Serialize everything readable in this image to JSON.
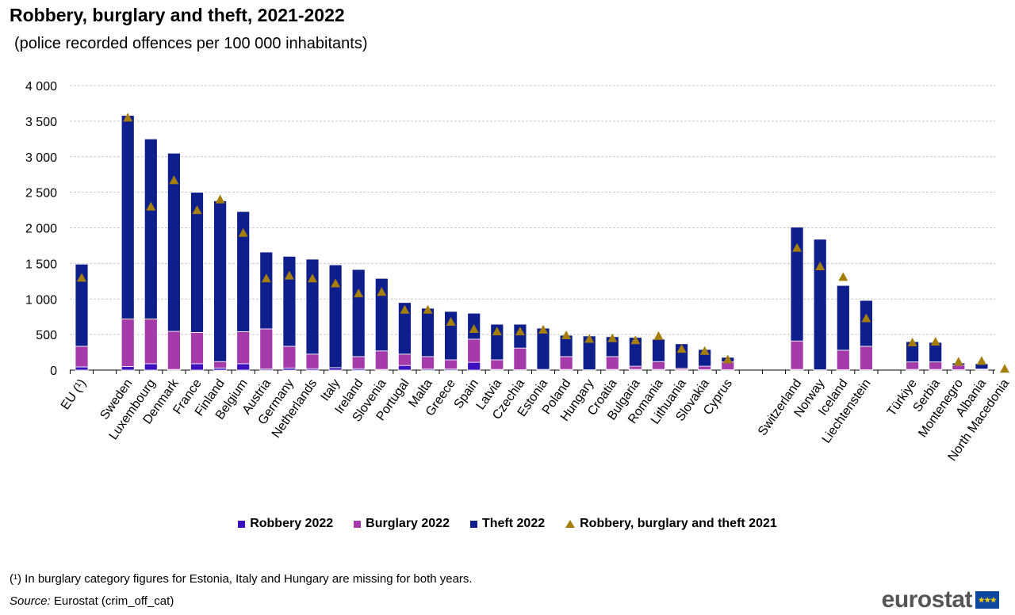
{
  "chart_data": {
    "type": "bar",
    "stacked": true,
    "title": "Robbery, burglary and theft, 2021-2022",
    "subtitle": "(police recorded offences per 100 000 inhabitants)",
    "xlabel": "",
    "ylabel": "",
    "ylim": [
      0,
      4000
    ],
    "yticks": [
      0,
      500,
      1000,
      1500,
      2000,
      2500,
      3000,
      3500,
      4000
    ],
    "ytick_labels": [
      "0",
      "500",
      "1 000",
      "1 500",
      "2 000",
      "2 500",
      "3 000",
      "3 500",
      "4 000"
    ],
    "grid": true,
    "legend_position": "bottom",
    "categories": [
      "EU (¹)",
      "Sweden",
      "Luxembourg",
      "Denmark",
      "France",
      "Finland",
      "Belgium",
      "Austria",
      "Germany",
      "Netherlands",
      "Italy",
      "Ireland",
      "Slovenia",
      "Portugal",
      "Malta",
      "Greece",
      "Spain",
      "Latvia",
      "Czechia",
      "Estonia",
      "Poland",
      "Hungary",
      "Croatia",
      "Bulgaria",
      "Romania",
      "Lithuania",
      "Slovakia",
      "Cyprus",
      "Switzerland",
      "Norway",
      "Iceland",
      "Liechtenstein",
      "Türkiye",
      "Serbia",
      "Montenegro",
      "Albania",
      "North Macedonia"
    ],
    "series": [
      {
        "name": "Robbery 2022",
        "type": "bar",
        "color": "#3c0fc0",
        "values": [
          45,
          50,
          90,
          10,
          90,
          30,
          90,
          15,
          30,
          20,
          35,
          20,
          10,
          65,
          15,
          15,
          110,
          10,
          5,
          10,
          10,
          5,
          10,
          10,
          10,
          5,
          5,
          5,
          10,
          5,
          5,
          5,
          10,
          10,
          5,
          5,
          null
        ]
      },
      {
        "name": "Burglary 2022",
        "type": "bar",
        "color": "#a53aab",
        "values": [
          290,
          670,
          630,
          535,
          440,
          90,
          450,
          565,
          305,
          205,
          0,
          170,
          260,
          160,
          175,
          130,
          325,
          135,
          305,
          0,
          180,
          0,
          180,
          45,
          110,
          20,
          50,
          110,
          400,
          0,
          275,
          330,
          105,
          105,
          65,
          10,
          null
        ]
      },
      {
        "name": "Theft 2022",
        "type": "bar",
        "color": "#0e1e8c",
        "values": [
          1155,
          2860,
          2530,
          2505,
          1970,
          2260,
          1690,
          1080,
          1265,
          1335,
          1445,
          1225,
          1020,
          725,
          680,
          680,
          365,
          500,
          335,
          580,
          300,
          475,
          280,
          405,
          315,
          345,
          235,
          65,
          1600,
          1835,
          910,
          645,
          285,
          275,
          30,
          75,
          null
        ]
      },
      {
        "name": "Robbery, burglary and theft 2021",
        "type": "marker",
        "color": "#a57e0a",
        "values": [
          1300,
          3550,
          2300,
          2670,
          2250,
          2400,
          1930,
          1290,
          1330,
          1290,
          1220,
          1080,
          1100,
          850,
          850,
          680,
          580,
          545,
          545,
          570,
          490,
          440,
          450,
          420,
          480,
          300,
          270,
          150,
          1720,
          1460,
          1310,
          730,
          390,
          400,
          120,
          130,
          20
        ]
      }
    ],
    "groups": [
      [
        0,
        0
      ],
      [
        1,
        27
      ],
      [
        28,
        31
      ],
      [
        32,
        36
      ]
    ]
  },
  "footnote": "(¹) In burglary category figures for Estonia, Italy and Hungary are missing for both years.",
  "source_label": "Source:",
  "source_text": " Eurostat (crim_off_cat)",
  "logo": "eurostat"
}
